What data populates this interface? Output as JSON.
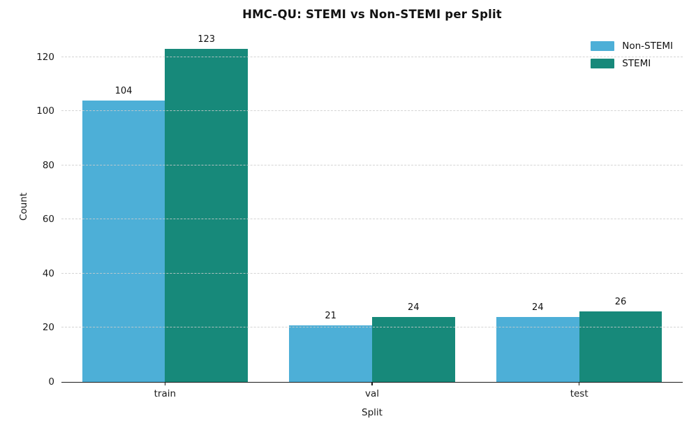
{
  "chart_data": {
    "type": "bar",
    "title": "HMC-QU: STEMI vs Non-STEMI per Split",
    "xlabel": "Split",
    "ylabel": "Count",
    "categories": [
      "train",
      "val",
      "test"
    ],
    "series": [
      {
        "name": "Non-STEMI",
        "color": "#4DAFD7",
        "values": [
          104,
          21,
          24
        ]
      },
      {
        "name": "STEMI",
        "color": "#17897A",
        "values": [
          123,
          24,
          26
        ]
      }
    ],
    "bar_value_labels": true,
    "yticks": [
      0,
      20,
      40,
      60,
      80,
      100,
      120
    ],
    "ylim": [
      0,
      129.15
    ],
    "grid": "horizontal-dashed",
    "grid_over_bars": true,
    "legend_position": "upper-right",
    "background_color": "#ffffff",
    "axis_color": "#1a1a1a"
  }
}
